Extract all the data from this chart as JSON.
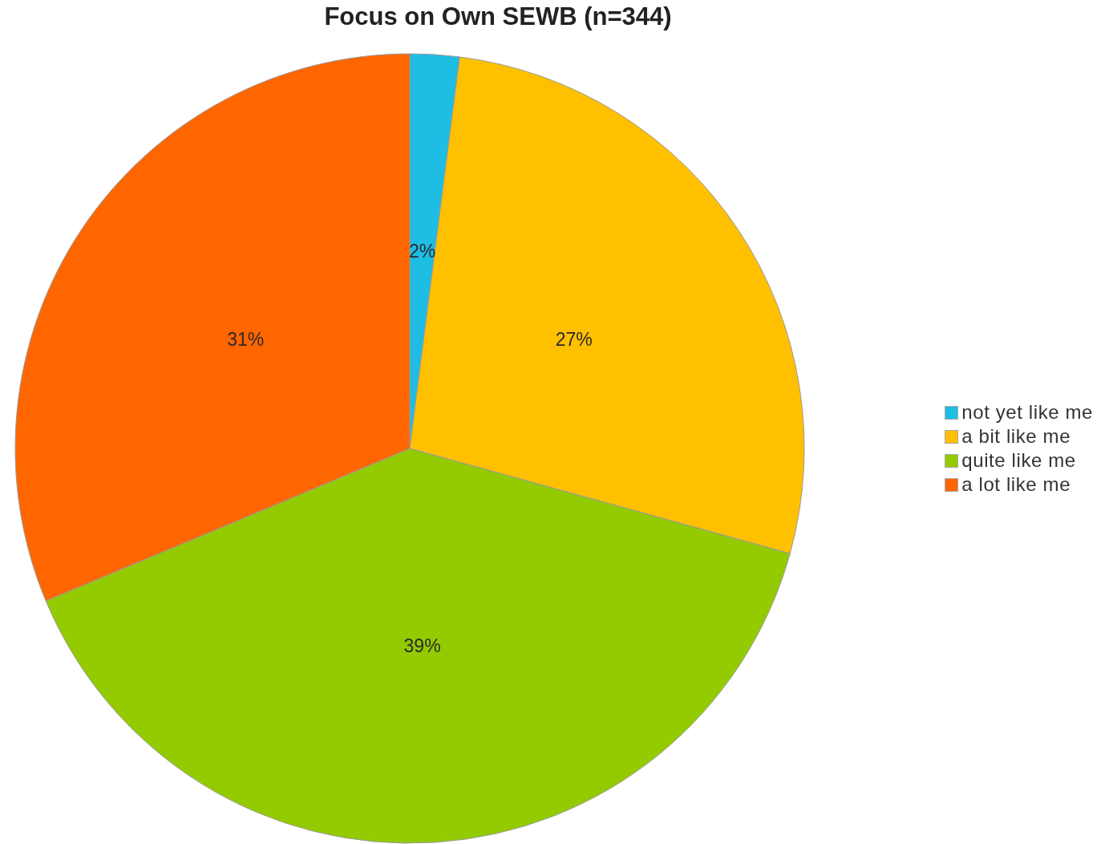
{
  "chart_data": {
    "type": "pie",
    "title": "Focus on Own SEWB (n=344)",
    "categories": [
      "not yet like me",
      "a bit like me",
      "quite like me",
      "a lot like me"
    ],
    "values": [
      2,
      27,
      39,
      31
    ],
    "colors": [
      "#1ebde3",
      "#ffc000",
      "#93cb00",
      "#ff6600"
    ],
    "value_labels": [
      "2%",
      "27%",
      "39%",
      "31%"
    ],
    "legend": "right"
  }
}
